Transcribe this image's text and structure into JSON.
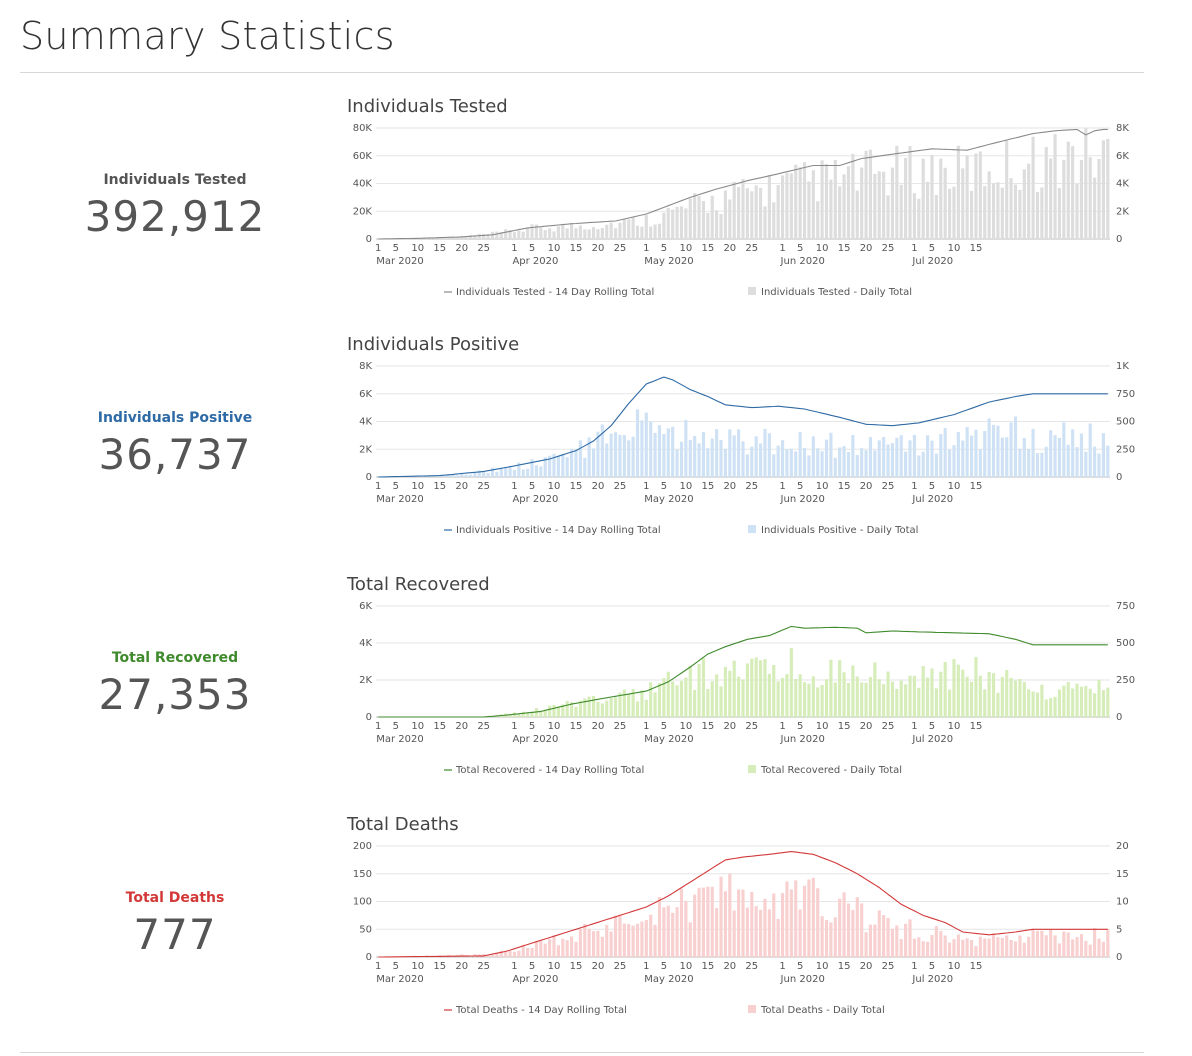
{
  "page_title": "Summary Statistics",
  "stats": [
    {
      "label": "Individuals Tested",
      "value": "392,912",
      "color": "#555555"
    },
    {
      "label": "Individuals Positive",
      "value": "36,737",
      "color": "#2e6aa5"
    },
    {
      "label": "Total Recovered",
      "value": "27,353",
      "color": "#3f8a2c"
    },
    {
      "label": "Total Deaths",
      "value": "777",
      "color": "#d33838"
    }
  ],
  "chart_data": [
    {
      "type": "bar",
      "title": "Individuals Tested",
      "line_color": "#8a8a8a",
      "bar_color": "#dddddd",
      "left_axis": {
        "ticks": [
          0,
          20000,
          40000,
          60000,
          80000
        ],
        "tick_labels": [
          "0",
          "20K",
          "40K",
          "60K",
          "80K"
        ],
        "max": 80000
      },
      "right_axis": {
        "ticks": [
          0,
          2000,
          4000,
          6000,
          8000
        ],
        "tick_labels": [
          "0",
          "2K",
          "4K",
          "6K",
          "8K"
        ],
        "max": 8000
      },
      "x_day_labels": [
        "1",
        "5",
        "10",
        "15",
        "20",
        "25",
        "1",
        "5",
        "10",
        "15",
        "20",
        "25",
        "1",
        "5",
        "10",
        "15",
        "20",
        "25",
        "1",
        "5",
        "10",
        "15",
        "20",
        "25",
        "1",
        "5",
        "10",
        "15"
      ],
      "x_month_labels": [
        "Mar 2020",
        "Apr 2020",
        "May 2020",
        "Jun 2020",
        "Jul 2020"
      ],
      "series": [
        {
          "name": "Individuals Tested - 14 Day Rolling Total",
          "kind": "line",
          "axis": "left",
          "anchors": [
            [
              1,
              0
            ],
            [
              10,
              500
            ],
            [
              20,
              1500
            ],
            [
              27,
              3000
            ],
            [
              35,
              8000
            ],
            [
              45,
              11000
            ],
            [
              55,
              13000
            ],
            [
              62,
              18000
            ],
            [
              67,
              24000
            ],
            [
              72,
              30000
            ],
            [
              78,
              36000
            ],
            [
              85,
              42000
            ],
            [
              92,
              47000
            ],
            [
              100,
              53000
            ],
            [
              106,
              53000
            ],
            [
              111,
              58000
            ],
            [
              120,
              62000
            ],
            [
              127,
              65000
            ],
            [
              135,
              64000
            ],
            [
              141,
              69000
            ],
            [
              150,
              76000
            ],
            [
              155,
              78000
            ],
            [
              160,
              79000
            ],
            [
              162,
              75000
            ],
            [
              164,
              78000
            ],
            [
              166,
              79000
            ]
          ]
        },
        {
          "name": "Individuals Tested - Daily Total",
          "kind": "bar",
          "axis": "right",
          "anchors": [
            [
              1,
              0
            ],
            [
              10,
              20
            ],
            [
              20,
              200
            ],
            [
              27,
              400
            ],
            [
              35,
              800
            ],
            [
              45,
              1000
            ],
            [
              55,
              1200
            ],
            [
              62,
              1500
            ],
            [
              67,
              2000
            ],
            [
              72,
              2500
            ],
            [
              78,
              3000
            ],
            [
              85,
              3600
            ],
            [
              92,
              4100
            ],
            [
              100,
              4500
            ],
            [
              106,
              4700
            ],
            [
              111,
              5000
            ],
            [
              120,
              5200
            ],
            [
              127,
              5300
            ],
            [
              135,
              5200
            ],
            [
              141,
              5600
            ],
            [
              150,
              6000
            ],
            [
              155,
              6200
            ],
            [
              160,
              6400
            ],
            [
              166,
              6500
            ]
          ]
        }
      ]
    },
    {
      "type": "bar",
      "title": "Individuals Positive",
      "line_color": "#2e6aa5",
      "bar_color": "#cfe2f5",
      "left_axis": {
        "ticks": [
          0,
          2000,
          4000,
          6000,
          8000
        ],
        "tick_labels": [
          "0",
          "2K",
          "4K",
          "6K",
          "8K"
        ],
        "max": 8000
      },
      "right_axis": {
        "ticks": [
          0,
          250,
          500,
          750,
          1000
        ],
        "tick_labels": [
          "0",
          "250",
          "500",
          "750",
          "1K"
        ],
        "max": 1000
      },
      "x_day_labels": [
        "1",
        "5",
        "10",
        "15",
        "20",
        "25",
        "1",
        "5",
        "10",
        "15",
        "20",
        "25",
        "1",
        "5",
        "10",
        "15",
        "20",
        "25",
        "1",
        "5",
        "10",
        "15",
        "20",
        "25",
        "1",
        "5",
        "10",
        "15"
      ],
      "x_month_labels": [
        "Mar 2020",
        "Apr 2020",
        "May 2020",
        "Jun 2020",
        "Jul 2020"
      ],
      "series": [
        {
          "name": "Individuals Positive - 14 Day Rolling Total",
          "kind": "line",
          "axis": "left",
          "anchors": [
            [
              1,
              0
            ],
            [
              15,
              100
            ],
            [
              25,
              400
            ],
            [
              32,
              800
            ],
            [
              40,
              1300
            ],
            [
              46,
              1900
            ],
            [
              50,
              2600
            ],
            [
              54,
              3700
            ],
            [
              58,
              5300
            ],
            [
              62,
              6700
            ],
            [
              66,
              7200
            ],
            [
              68,
              7000
            ],
            [
              72,
              6300
            ],
            [
              76,
              5800
            ],
            [
              80,
              5200
            ],
            [
              86,
              5000
            ],
            [
              92,
              5100
            ],
            [
              98,
              4900
            ],
            [
              106,
              4300
            ],
            [
              112,
              3800
            ],
            [
              118,
              3700
            ],
            [
              124,
              3900
            ],
            [
              132,
              4500
            ],
            [
              140,
              5400
            ],
            [
              146,
              5800
            ],
            [
              150,
              6000
            ]
          ]
        },
        {
          "name": "Individuals Positive - Daily Total",
          "kind": "bar",
          "axis": "right",
          "anchors": [
            [
              1,
              0
            ],
            [
              15,
              10
            ],
            [
              25,
              50
            ],
            [
              32,
              100
            ],
            [
              40,
              150
            ],
            [
              46,
              250
            ],
            [
              50,
              350
            ],
            [
              54,
              450
            ],
            [
              58,
              500
            ],
            [
              62,
              450
            ],
            [
              66,
              400
            ],
            [
              72,
              400
            ],
            [
              80,
              360
            ],
            [
              90,
              350
            ],
            [
              100,
              320
            ],
            [
              110,
              300
            ],
            [
              118,
              300
            ],
            [
              124,
              320
            ],
            [
              130,
              380
            ],
            [
              140,
              420
            ],
            [
              146,
              430
            ],
            [
              150,
              380
            ]
          ]
        }
      ]
    },
    {
      "type": "bar",
      "title": "Total Recovered",
      "line_color": "#3f8a2c",
      "bar_color": "#d6edb9",
      "left_axis": {
        "ticks": [
          0,
          2000,
          4000,
          6000
        ],
        "tick_labels": [
          "0",
          "2K",
          "4K",
          "6K"
        ],
        "max": 6000
      },
      "right_axis": {
        "ticks": [
          0,
          250,
          500,
          750
        ],
        "tick_labels": [
          "0",
          "250",
          "500",
          "750"
        ],
        "max": 750
      },
      "x_day_labels": [
        "1",
        "5",
        "10",
        "15",
        "20",
        "25",
        "1",
        "5",
        "10",
        "15",
        "20",
        "25",
        "1",
        "5",
        "10",
        "15",
        "20",
        "25",
        "1",
        "5",
        "10",
        "15",
        "20",
        "25",
        "1",
        "5",
        "10",
        "15"
      ],
      "x_month_labels": [
        "Mar 2020",
        "Apr 2020",
        "May 2020",
        "Jun 2020",
        "Jul 2020"
      ],
      "series": [
        {
          "name": "Total Recovered - 14 Day Rolling Total",
          "kind": "line",
          "axis": "left",
          "anchors": [
            [
              1,
              0
            ],
            [
              25,
              0
            ],
            [
              30,
              100
            ],
            [
              38,
              300
            ],
            [
              45,
              700
            ],
            [
              52,
              1000
            ],
            [
              57,
              1200
            ],
            [
              62,
              1400
            ],
            [
              67,
              1900
            ],
            [
              72,
              2700
            ],
            [
              76,
              3400
            ],
            [
              80,
              3800
            ],
            [
              85,
              4200
            ],
            [
              90,
              4400
            ],
            [
              93,
              4700
            ],
            [
              95,
              4900
            ],
            [
              98,
              4800
            ],
            [
              105,
              4850
            ],
            [
              110,
              4800
            ],
            [
              112,
              4550
            ],
            [
              118,
              4650
            ],
            [
              124,
              4600
            ],
            [
              132,
              4550
            ],
            [
              140,
              4500
            ],
            [
              146,
              4200
            ],
            [
              150,
              3900
            ]
          ]
        },
        {
          "name": "Total Recovered - Daily Total",
          "kind": "bar",
          "axis": "right",
          "anchors": [
            [
              1,
              0
            ],
            [
              25,
              0
            ],
            [
              30,
              20
            ],
            [
              40,
              60
            ],
            [
              50,
              130
            ],
            [
              57,
              160
            ],
            [
              62,
              200
            ],
            [
              66,
              250
            ],
            [
              72,
              300
            ],
            [
              78,
              340
            ],
            [
              85,
              360
            ],
            [
              92,
              370
            ],
            [
              100,
              360
            ],
            [
              110,
              350
            ],
            [
              118,
              340
            ],
            [
              124,
              330
            ],
            [
              132,
              320
            ],
            [
              140,
              310
            ],
            [
              146,
              250
            ],
            [
              150,
              200
            ]
          ]
        }
      ]
    },
    {
      "type": "bar",
      "title": "Total Deaths",
      "line_color": "#d33838",
      "bar_color": "#f8d0d0",
      "left_axis": {
        "ticks": [
          0,
          50,
          100,
          150,
          200
        ],
        "tick_labels": [
          "0",
          "50",
          "100",
          "150",
          "200"
        ],
        "max": 200
      },
      "right_axis": {
        "ticks": [
          0,
          5,
          10,
          15,
          20
        ],
        "tick_labels": [
          "0",
          "5",
          "10",
          "15",
          "20"
        ],
        "max": 20
      },
      "x_day_labels": [
        "1",
        "5",
        "10",
        "15",
        "20",
        "25",
        "1",
        "5",
        "10",
        "15",
        "20",
        "25",
        "1",
        "5",
        "10",
        "15",
        "20",
        "25",
        "1",
        "5",
        "10",
        "15",
        "20",
        "25",
        "1",
        "5",
        "10",
        "15"
      ],
      "x_month_labels": [
        "Mar 2020",
        "Apr 2020",
        "May 2020",
        "Jun 2020",
        "Jul 2020"
      ],
      "series": [
        {
          "name": "Total Deaths - 14 Day Rolling Total",
          "kind": "line",
          "axis": "left",
          "anchors": [
            [
              1,
              0
            ],
            [
              25,
              2
            ],
            [
              30,
              10
            ],
            [
              38,
              30
            ],
            [
              46,
              50
            ],
            [
              54,
              70
            ],
            [
              62,
              90
            ],
            [
              67,
              110
            ],
            [
              72,
              135
            ],
            [
              76,
              155
            ],
            [
              80,
              175
            ],
            [
              84,
              180
            ],
            [
              90,
              185
            ],
            [
              95,
              190
            ],
            [
              100,
              185
            ],
            [
              105,
              170
            ],
            [
              110,
              150
            ],
            [
              115,
              125
            ],
            [
              120,
              95
            ],
            [
              125,
              75
            ],
            [
              130,
              62
            ],
            [
              134,
              45
            ],
            [
              140,
              40
            ],
            [
              146,
              45
            ],
            [
              150,
              50
            ]
          ]
        },
        {
          "name": "Total Deaths - Daily Total",
          "kind": "bar",
          "axis": "right",
          "anchors": [
            [
              1,
              0
            ],
            [
              25,
              0.5
            ],
            [
              30,
              1
            ],
            [
              40,
              3
            ],
            [
              50,
              5
            ],
            [
              58,
              7
            ],
            [
              64,
              9
            ],
            [
              70,
              11
            ],
            [
              76,
              12
            ],
            [
              82,
              13
            ],
            [
              88,
              13
            ],
            [
              95,
              12
            ],
            [
              100,
              11
            ],
            [
              106,
              10
            ],
            [
              112,
              8
            ],
            [
              118,
              6
            ],
            [
              124,
              5
            ],
            [
              130,
              4
            ],
            [
              136,
              3
            ],
            [
              142,
              4
            ],
            [
              150,
              4
            ]
          ]
        }
      ]
    }
  ]
}
